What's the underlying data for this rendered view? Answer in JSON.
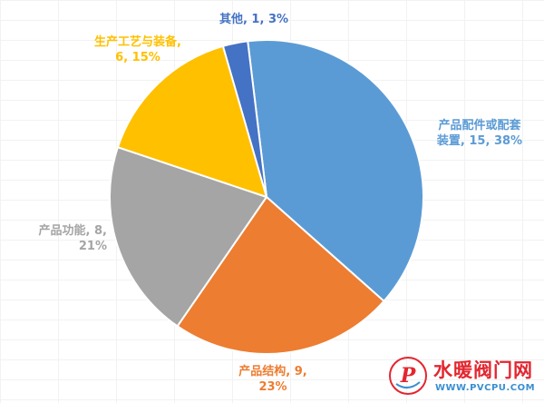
{
  "chart_data": {
    "type": "pie",
    "start_angle_deg": -6.9,
    "direction": "clockwise",
    "series": [
      {
        "category": "产品配件或配套装置",
        "value": 15,
        "percent": "38%",
        "color": "#5b9bd5",
        "label_lines": [
          "产品配件或配套",
          "装置, 15, 38%"
        ],
        "label_align": "center"
      },
      {
        "category": "产品结构",
        "value": 9,
        "percent": "23%",
        "color": "#ed7d31",
        "label_lines": [
          "产品结构, 9,",
          "23%"
        ],
        "label_align": "center"
      },
      {
        "category": "产品功能",
        "value": 8,
        "percent": "21%",
        "color": "#a5a5a5",
        "label_lines": [
          "产品功能, 8,",
          "21%"
        ],
        "label_align": "right"
      },
      {
        "category": "生产工艺与装备",
        "value": 6,
        "percent": "15%",
        "color": "#ffc000",
        "label_lines": [
          "生产工艺与装备,",
          "6, 15%"
        ],
        "label_align": "center"
      },
      {
        "category": "其他",
        "value": 1,
        "percent": "3%",
        "color": "#4472c4",
        "label_lines": [
          "其他, 1, 3%"
        ],
        "label_align": "center"
      }
    ]
  },
  "watermark": {
    "title": "水暖阀门网",
    "url": "WWW.PVCPU.COM",
    "logo_letter": "P",
    "colors": {
      "title": "#e3262f",
      "url": "#3a8fd0"
    }
  }
}
